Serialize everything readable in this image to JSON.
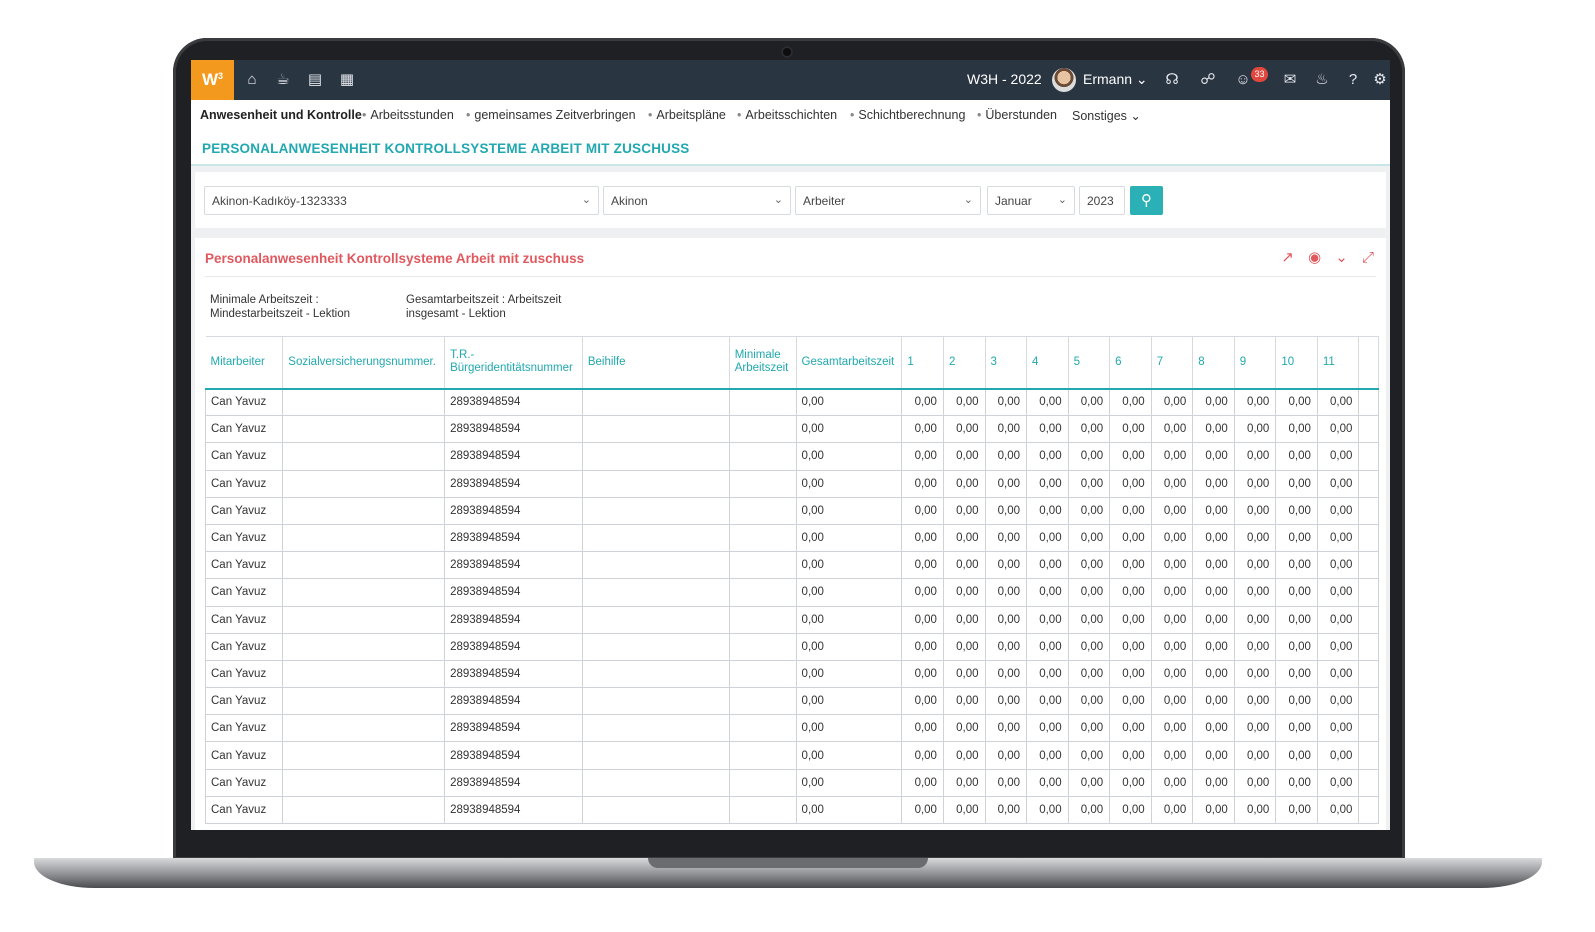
{
  "topbar": {
    "logo": "W",
    "logo_sup": "3",
    "year": "W3H - 2022",
    "user": "Ermann",
    "notification_count": "33",
    "icons_left": [
      "home-icon",
      "coffee-icon",
      "bar-chart-icon",
      "calendar-icon"
    ],
    "icons_right": [
      "headset-icon",
      "share-icon",
      "smiley-icon",
      "chat-icon",
      "bell-icon",
      "help-icon",
      "gear-icon"
    ]
  },
  "nav": {
    "items": [
      "Anwesenheit und Kontrolle",
      "Arbeitsstunden",
      "gemeinsames Zeitverbringen",
      "Arbeitspläne",
      "Arbeitsschichten",
      "Schichtberechnung",
      "Überstunden",
      "Sonstiges"
    ]
  },
  "page": {
    "title": "PERSONALANWESENHEIT KONTROLLSYSTEME ARBEIT MIT ZUSCHUSS"
  },
  "filters": {
    "branch": "Akinon-Kadıköy-1323333",
    "company": "Akinon",
    "employee_type": "Arbeiter",
    "month": "Januar",
    "year": "2023"
  },
  "report": {
    "title": "Personalanwesenheit Kontrollsysteme Arbeit mit zuschuss",
    "legend_1_line1": "Minimale Arbeitszeit :",
    "legend_1_line2": "Mindestarbeitszeit - Lektion",
    "legend_2_line1": "Gesamtarbeitszeit : Arbeitszeit",
    "legend_2_line2": "insgesamt - Lektion"
  },
  "table": {
    "headers": {
      "employee": "Mitarbeiter",
      "ssn": "Sozialversicherungsnummer.",
      "tr_id_line1": "T.R.-",
      "tr_id_line2": "Bürgeridentitätsnummer",
      "allowance": "Beihilfe",
      "min_line1": "Minimale",
      "min_line2": "Arbeitszeit",
      "total": "Gesamtarbeitszeit",
      "days": [
        "1",
        "2",
        "3",
        "4",
        "5",
        "6",
        "7",
        "8",
        "9",
        "10",
        "11"
      ]
    },
    "rows": [
      {
        "employee": "Can Yavuz",
        "ssn": "",
        "tr_id": "28938948594",
        "allowance": "",
        "min": "",
        "total": "0,00",
        "days": [
          "0,00",
          "0,00",
          "0,00",
          "0,00",
          "0,00",
          "0,00",
          "0,00",
          "0,00",
          "0,00",
          "0,00",
          "0,00"
        ]
      },
      {
        "employee": "Can Yavuz",
        "ssn": "",
        "tr_id": "28938948594",
        "allowance": "",
        "min": "",
        "total": "0,00",
        "days": [
          "0,00",
          "0,00",
          "0,00",
          "0,00",
          "0,00",
          "0,00",
          "0,00",
          "0,00",
          "0,00",
          "0,00",
          "0,00"
        ]
      },
      {
        "employee": "Can Yavuz",
        "ssn": "",
        "tr_id": "28938948594",
        "allowance": "",
        "min": "",
        "total": "0,00",
        "days": [
          "0,00",
          "0,00",
          "0,00",
          "0,00",
          "0,00",
          "0,00",
          "0,00",
          "0,00",
          "0,00",
          "0,00",
          "0,00"
        ]
      },
      {
        "employee": "Can Yavuz",
        "ssn": "",
        "tr_id": "28938948594",
        "allowance": "",
        "min": "",
        "total": "0,00",
        "days": [
          "0,00",
          "0,00",
          "0,00",
          "0,00",
          "0,00",
          "0,00",
          "0,00",
          "0,00",
          "0,00",
          "0,00",
          "0,00"
        ]
      },
      {
        "employee": "Can Yavuz",
        "ssn": "",
        "tr_id": "28938948594",
        "allowance": "",
        "min": "",
        "total": "0,00",
        "days": [
          "0,00",
          "0,00",
          "0,00",
          "0,00",
          "0,00",
          "0,00",
          "0,00",
          "0,00",
          "0,00",
          "0,00",
          "0,00"
        ]
      },
      {
        "employee": "Can Yavuz",
        "ssn": "",
        "tr_id": "28938948594",
        "allowance": "",
        "min": "",
        "total": "0,00",
        "days": [
          "0,00",
          "0,00",
          "0,00",
          "0,00",
          "0,00",
          "0,00",
          "0,00",
          "0,00",
          "0,00",
          "0,00",
          "0,00"
        ]
      },
      {
        "employee": "Can Yavuz",
        "ssn": "",
        "tr_id": "28938948594",
        "allowance": "",
        "min": "",
        "total": "0,00",
        "days": [
          "0,00",
          "0,00",
          "0,00",
          "0,00",
          "0,00",
          "0,00",
          "0,00",
          "0,00",
          "0,00",
          "0,00",
          "0,00"
        ]
      },
      {
        "employee": "Can Yavuz",
        "ssn": "",
        "tr_id": "28938948594",
        "allowance": "",
        "min": "",
        "total": "0,00",
        "days": [
          "0,00",
          "0,00",
          "0,00",
          "0,00",
          "0,00",
          "0,00",
          "0,00",
          "0,00",
          "0,00",
          "0,00",
          "0,00"
        ]
      },
      {
        "employee": "Can Yavuz",
        "ssn": "",
        "tr_id": "28938948594",
        "allowance": "",
        "min": "",
        "total": "0,00",
        "days": [
          "0,00",
          "0,00",
          "0,00",
          "0,00",
          "0,00",
          "0,00",
          "0,00",
          "0,00",
          "0,00",
          "0,00",
          "0,00"
        ]
      },
      {
        "employee": "Can Yavuz",
        "ssn": "",
        "tr_id": "28938948594",
        "allowance": "",
        "min": "",
        "total": "0,00",
        "days": [
          "0,00",
          "0,00",
          "0,00",
          "0,00",
          "0,00",
          "0,00",
          "0,00",
          "0,00",
          "0,00",
          "0,00",
          "0,00"
        ]
      },
      {
        "employee": "Can Yavuz",
        "ssn": "",
        "tr_id": "28938948594",
        "allowance": "",
        "min": "",
        "total": "0,00",
        "days": [
          "0,00",
          "0,00",
          "0,00",
          "0,00",
          "0,00",
          "0,00",
          "0,00",
          "0,00",
          "0,00",
          "0,00",
          "0,00"
        ]
      },
      {
        "employee": "Can Yavuz",
        "ssn": "",
        "tr_id": "28938948594",
        "allowance": "",
        "min": "",
        "total": "0,00",
        "days": [
          "0,00",
          "0,00",
          "0,00",
          "0,00",
          "0,00",
          "0,00",
          "0,00",
          "0,00",
          "0,00",
          "0,00",
          "0,00"
        ]
      },
      {
        "employee": "Can Yavuz",
        "ssn": "",
        "tr_id": "28938948594",
        "allowance": "",
        "min": "",
        "total": "0,00",
        "days": [
          "0,00",
          "0,00",
          "0,00",
          "0,00",
          "0,00",
          "0,00",
          "0,00",
          "0,00",
          "0,00",
          "0,00",
          "0,00"
        ]
      },
      {
        "employee": "Can Yavuz",
        "ssn": "",
        "tr_id": "28938948594",
        "allowance": "",
        "min": "",
        "total": "0,00",
        "days": [
          "0,00",
          "0,00",
          "0,00",
          "0,00",
          "0,00",
          "0,00",
          "0,00",
          "0,00",
          "0,00",
          "0,00",
          "0,00"
        ]
      },
      {
        "employee": "Can Yavuz",
        "ssn": "",
        "tr_id": "28938948594",
        "allowance": "",
        "min": "",
        "total": "0,00",
        "days": [
          "0,00",
          "0,00",
          "0,00",
          "0,00",
          "0,00",
          "0,00",
          "0,00",
          "0,00",
          "0,00",
          "0,00",
          "0,00"
        ]
      },
      {
        "employee": "Can Yavuz",
        "ssn": "",
        "tr_id": "28938948594",
        "allowance": "",
        "min": "",
        "total": "0,00",
        "days": [
          "0,00",
          "0,00",
          "0,00",
          "0,00",
          "0,00",
          "0,00",
          "0,00",
          "0,00",
          "0,00",
          "0,00",
          "0,00"
        ]
      }
    ]
  }
}
